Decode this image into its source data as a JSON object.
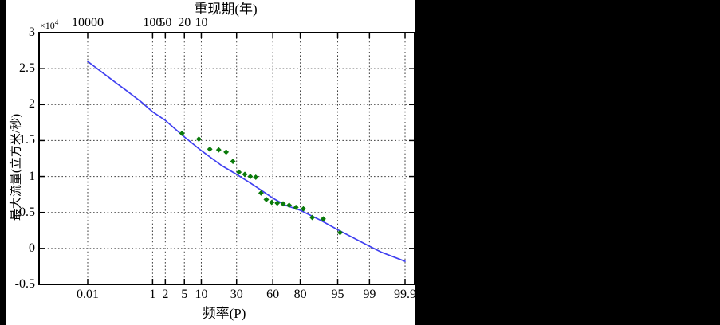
{
  "chart": {
    "panel_bg": "#ffffff",
    "outer_bg": "#000000",
    "axis_color": "#000000",
    "grid_color": "#3c3c3c",
    "curve_color": "#4040f0",
    "marker_color": "#0a7a0a"
  },
  "chart_data": {
    "type": "line",
    "top_axis_title": "重现期(年)",
    "xlabel": "频率(P)",
    "ylabel": "最大流量(立方米/秒)",
    "y_multiplier_base": "×10",
    "y_multiplier_exp": "4",
    "x_scale": "normal-probability",
    "x_axis_unit": "percent-frequency",
    "ylim": [
      -0.5,
      3
    ],
    "grid": "dotted",
    "legend_position": "none",
    "x_ticks": [
      {
        "label": "0.01",
        "p": 0.01
      },
      {
        "label": "1",
        "p": 1
      },
      {
        "label": "2",
        "p": 2
      },
      {
        "label": "5",
        "p": 5
      },
      {
        "label": "10",
        "p": 10
      },
      {
        "label": "30",
        "p": 30
      },
      {
        "label": "60",
        "p": 60
      },
      {
        "label": "80",
        "p": 80
      },
      {
        "label": "95",
        "p": 95
      },
      {
        "label": "99",
        "p": 99
      },
      {
        "label": "99.9",
        "p": 99.9
      }
    ],
    "top_ticks": [
      {
        "label": "10000",
        "p": 0.01
      },
      {
        "label": "100",
        "p": 1
      },
      {
        "label": "50",
        "p": 2
      },
      {
        "label": "20",
        "p": 5
      },
      {
        "label": "10",
        "p": 10
      }
    ],
    "y_ticks": [
      {
        "label": "3",
        "v": 3
      },
      {
        "label": "2.5",
        "v": 2.5
      },
      {
        "label": "2",
        "v": 2
      },
      {
        "label": "1.5",
        "v": 1.5
      },
      {
        "label": "1",
        "v": 1
      },
      {
        "label": "0.5",
        "v": 0.5
      },
      {
        "label": "0",
        "v": 0
      },
      {
        "label": "-0.5",
        "v": -0.5
      }
    ],
    "series": [
      {
        "name": "curve",
        "type": "line",
        "color": "#4040f0",
        "x_percent": [
          0.01,
          0.05,
          0.1,
          0.2,
          0.5,
          1,
          2,
          5,
          10,
          20,
          30,
          40,
          50,
          60,
          70,
          80,
          90,
          95,
          99,
          99.5,
          99.9
        ],
        "y": [
          2.6,
          2.39,
          2.29,
          2.19,
          2.04,
          1.9,
          1.78,
          1.55,
          1.36,
          1.15,
          1.03,
          0.92,
          0.81,
          0.7,
          0.6,
          0.53,
          0.39,
          0.26,
          0.03,
          -0.05,
          -0.18
        ]
      },
      {
        "name": "points",
        "type": "scatter",
        "marker": "diamond",
        "color": "#0a7a0a",
        "x_percent": [
          4.5,
          9.1,
          13.6,
          18.2,
          22.7,
          27.3,
          31.8,
          36.4,
          40.9,
          45.5,
          50.0,
          54.5,
          59.1,
          63.6,
          68.2,
          72.7,
          77.3,
          81.8,
          86.4,
          90.9,
          95.5
        ],
        "y": [
          1.6,
          1.52,
          1.38,
          1.37,
          1.34,
          1.21,
          1.06,
          1.03,
          1.0,
          0.99,
          0.77,
          0.68,
          0.64,
          0.63,
          0.62,
          0.6,
          0.57,
          0.55,
          0.43,
          0.41,
          0.22
        ]
      }
    ]
  }
}
